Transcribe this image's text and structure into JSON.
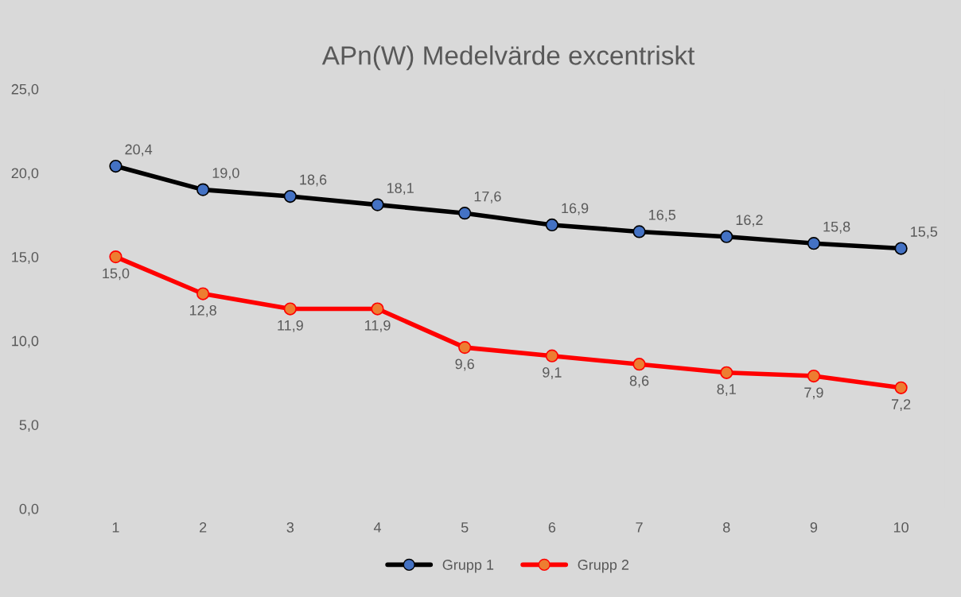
{
  "chart_data": {
    "type": "line",
    "title": "APn(W) Medelvärde excentriskt",
    "categories": [
      "1",
      "2",
      "3",
      "4",
      "5",
      "6",
      "7",
      "8",
      "9",
      "10"
    ],
    "series": [
      {
        "name": "Grupp 1",
        "color": "#000000",
        "colors": [
          "#4472c4",
          "#4472c4",
          "#4472c4",
          "#4472c4",
          "#4472c4",
          "#4472c4",
          "#4472c4",
          "#4472c4",
          "#4472c4",
          "#4472c4"
        ],
        "values": [
          20.4,
          19.0,
          18.6,
          18.1,
          17.6,
          16.9,
          16.5,
          16.2,
          15.8,
          15.5
        ],
        "value_labels": [
          "20,4",
          "19,0",
          "18,6",
          "18,1",
          "17,6",
          "16,9",
          "16,5",
          "16,2",
          "15,8",
          "15,5"
        ]
      },
      {
        "name": "Grupp 2",
        "color": "#ff0000",
        "colors": [
          "#ed7d31",
          "#ed7d31",
          "#ed7d31",
          "#ed7d31",
          "#ed7d31",
          "#ed7d31",
          "#ed7d31",
          "#ed7d31",
          "#ed7d31",
          "#ed7d31"
        ],
        "values": [
          15.0,
          12.8,
          11.9,
          11.9,
          9.6,
          9.1,
          8.6,
          8.1,
          7.9,
          7.2
        ],
        "value_labels": [
          "15,0",
          "12,8",
          "11,9",
          "11,9",
          "9,6",
          "9,1",
          "8,6",
          "8,1",
          "7,9",
          "7,2"
        ]
      }
    ],
    "ylim": [
      0,
      25
    ],
    "yticks": [
      {
        "value": 0,
        "label": "0,0"
      },
      {
        "value": 5,
        "label": "5,0"
      },
      {
        "value": 10,
        "label": "10,0"
      },
      {
        "value": 15,
        "label": "15,0"
      },
      {
        "value": 20,
        "label": "20,0"
      },
      {
        "value": 25,
        "label": "25,0"
      }
    ],
    "marker": "circle",
    "line_style": "solid",
    "legend": "bottom",
    "grid": false
  }
}
